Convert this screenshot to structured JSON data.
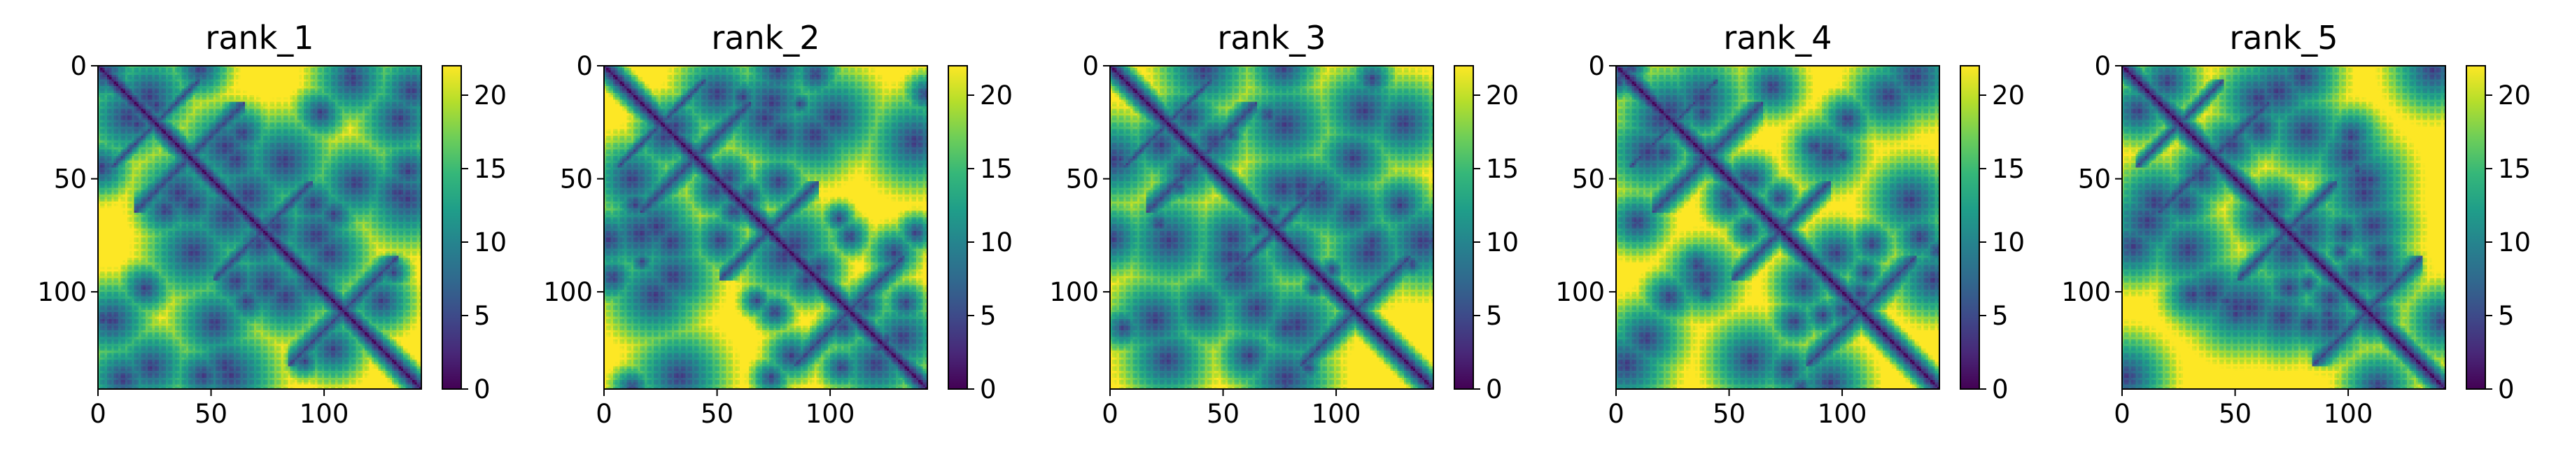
{
  "chart_data": [
    {
      "type": "heatmap",
      "title": "rank_1",
      "xlim": [
        0,
        143
      ],
      "ylim": [
        0,
        143
      ],
      "x_ticks": [
        "0",
        "50",
        "100"
      ],
      "y_ticks": [
        "0",
        "50",
        "100"
      ],
      "colorbar": {
        "min": 0,
        "max": 22,
        "ticks": [
          "0",
          "5",
          "10",
          "15",
          "20"
        ],
        "colormap": "viridis"
      }
    },
    {
      "type": "heatmap",
      "title": "rank_2",
      "xlim": [
        0,
        143
      ],
      "ylim": [
        0,
        143
      ],
      "x_ticks": [
        "0",
        "50",
        "100"
      ],
      "y_ticks": [
        "0",
        "50",
        "100"
      ],
      "colorbar": {
        "min": 0,
        "max": 22,
        "ticks": [
          "0",
          "5",
          "10",
          "15",
          "20"
        ],
        "colormap": "viridis"
      }
    },
    {
      "type": "heatmap",
      "title": "rank_3",
      "xlim": [
        0,
        143
      ],
      "ylim": [
        0,
        143
      ],
      "x_ticks": [
        "0",
        "50",
        "100"
      ],
      "y_ticks": [
        "0",
        "50",
        "100"
      ],
      "colorbar": {
        "min": 0,
        "max": 22,
        "ticks": [
          "0",
          "5",
          "10",
          "15",
          "20"
        ],
        "colormap": "viridis"
      }
    },
    {
      "type": "heatmap",
      "title": "rank_4",
      "xlim": [
        0,
        143
      ],
      "ylim": [
        0,
        143
      ],
      "x_ticks": [
        "0",
        "50",
        "100"
      ],
      "y_ticks": [
        "0",
        "50",
        "100"
      ],
      "colorbar": {
        "min": 0,
        "max": 22,
        "ticks": [
          "0",
          "5",
          "10",
          "15",
          "20"
        ],
        "colormap": "viridis"
      }
    },
    {
      "type": "heatmap",
      "title": "rank_5",
      "xlim": [
        0,
        143
      ],
      "ylim": [
        0,
        143
      ],
      "x_ticks": [
        "0",
        "50",
        "100"
      ],
      "y_ticks": [
        "0",
        "50",
        "100"
      ],
      "colorbar": {
        "min": 0,
        "max": 22,
        "ticks": [
          "0",
          "5",
          "10",
          "15",
          "20"
        ],
        "colormap": "viridis"
      }
    }
  ],
  "colors": {
    "viridis_low": "#440154",
    "viridis_mid": "#21918c",
    "viridis_high": "#fde725"
  }
}
